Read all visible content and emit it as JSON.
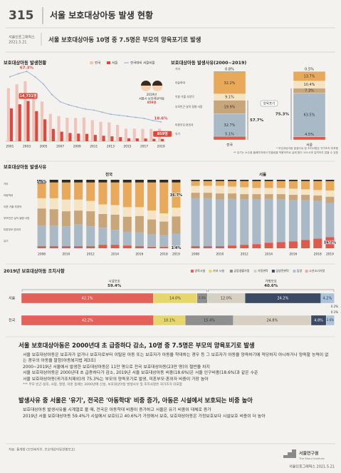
{
  "header": {
    "number": "315",
    "title": "서울 보호대상아동 발생 현황",
    "series_name": "서울인포그래픽스",
    "date": "2021.5.21",
    "subtitle": "서울 보호대상아동 10명 중 7.5명은 부모의 양육포기로 발생"
  },
  "chart_data": [
    {
      "type": "bar-line",
      "title": "보호대상아동 발생현황",
      "categories": [
        "2001",
        null,
        "2003",
        null,
        "2005",
        null,
        "2007",
        null,
        "2009",
        null,
        "2011",
        null,
        "2013",
        null,
        "2015",
        null,
        "2017",
        null,
        "2019"
      ],
      "series": [
        {
          "name": "전국",
          "color": "#f0c3bb",
          "values": [
            19400,
            20800,
            21890,
            17700,
            14500,
            10000,
            9200,
            8600,
            8500,
            8700,
            7700,
            7100,
            6900,
            6000,
            4600,
            4600,
            4500,
            4500,
            4618
          ]
        },
        {
          "name": "서울",
          "color": "#e0483e",
          "values": [
            12000,
            13500,
            14731,
            11000,
            8000,
            4500,
            3500,
            3000,
            2800,
            2700,
            2300,
            2000,
            1800,
            1500,
            1100,
            1050,
            1000,
            900,
            859
          ],
          "value_labels": [
            null,
            null,
            "14,731명",
            null,
            null,
            null,
            null,
            null,
            null,
            null,
            null,
            null,
            null,
            null,
            null,
            null,
            null,
            null,
            "859명"
          ]
        },
        {
          "name": "전국대비 서울비율",
          "color": "#9fb3d1",
          "axis": "y2",
          "values": [
            62,
            65,
            67.3,
            62,
            55,
            45,
            38,
            35,
            33,
            31,
            30,
            28,
            26,
            25,
            24,
            23,
            22,
            20,
            18.6
          ],
          "value_labels": [
            null,
            null,
            "67.3%",
            null,
            null,
            null,
            null,
            null,
            null,
            null,
            null,
            null,
            null,
            null,
            null,
            null,
            null,
            null,
            "18.6%"
          ]
        }
      ],
      "annotation": [
        "2019년",
        "서울시 보호대상아동",
        "859명"
      ]
    },
    {
      "type": "stacked-column",
      "title": "보호대상아동 발생사유(2000~2019)",
      "categories": [
        "전국",
        "서울"
      ],
      "series": [
        {
          "name": "기타",
          "color": "#2b2b2b",
          "values": [
            0.8,
            0.5
          ],
          "value_labels": [
            "0.8%",
            "0.5%"
          ]
        },
        {
          "name": "아동학대",
          "color": "#e8a95b",
          "values": [
            32.2,
            13.7
          ],
          "value_labels": [
            "32.2%",
            "13.7%"
          ]
        },
        {
          "name": "이혼·가출·부양악",
          "color": "#f4e4c4",
          "values": [
            9.1,
            10.4
          ],
          "value_labels": [
            "9.1%",
            "10.4%"
          ]
        },
        {
          "name": "부모빈곤·실직 질병·사망",
          "color": "#c9a67a",
          "values": [
            19.9,
            7.3
          ],
          "value_labels": [
            "19.9%",
            "7.3%"
          ]
        },
        {
          "name": "미혼부모·혼외자",
          "color": "#a9bac6",
          "values": [
            32.7,
            63.5
          ],
          "value_labels": [
            "32.7%",
            "63.5%"
          ]
        },
        {
          "name": "유기",
          "color": "#df5a4e",
          "values": [
            5.1,
            4.5
          ],
          "value_labels": [
            "5.1%",
            "4.5%"
          ]
        }
      ],
      "annotation": {
        "label": "양육포기",
        "values": [
          57.7,
          75.3
        ],
        "value_labels": [
          "57.7%",
          "75.3%"
        ]
      },
      "notes": [
        "* 보호대상아동 발생사유 및 조치사항은 귀가조치 미포함",
        "** 유기는 소수점 둘째자리에서 반올림을 적용하므로 실제 합이 100.0과 일치하지 않을 수 있음"
      ]
    },
    {
      "type": "stacked-panels",
      "title": "보호대상아동 발생사유",
      "categories": [
        "2008",
        null,
        "2010",
        null,
        "2012",
        null,
        "2014",
        null,
        "2016",
        null,
        "2018",
        "2019"
      ],
      "panels": [
        {
          "name": "전국",
          "series": [
            {
              "name": "기타",
              "color": "#2b2b2b",
              "values": [
                5.6,
                4,
                4,
                4,
                4,
                4,
                4,
                4,
                4,
                4,
                4,
                4
              ],
              "value_labels": [
                "5.6%",
                null,
                null,
                null,
                null,
                null,
                null,
                null,
                null,
                null,
                null,
                null
              ]
            },
            {
              "name": "아동학대",
              "color": "#e8a95b",
              "values": [
                21.4,
                23,
                25,
                25,
                27,
                32,
                33,
                36,
                36,
                41,
                45,
                36.7
              ],
              "value_labels": [
                null,
                null,
                null,
                null,
                null,
                null,
                null,
                null,
                null,
                null,
                null,
                "36.7%"
              ]
            },
            {
              "name": "이혼·가출·부양악",
              "color": "#f4e4c4",
              "values": [
                15,
                16,
                17,
                16,
                15,
                14,
                14,
                14,
                13,
                13,
                12,
                12.9
              ]
            },
            {
              "name": "부모빈곤·실직 질병·사망",
              "color": "#c9a67a",
              "values": [
                25,
                24,
                22,
                20,
                22,
                20,
                22,
                22,
                24,
                22,
                20,
                25
              ]
            },
            {
              "name": "미혼부모·혼외자",
              "color": "#a9bac6",
              "values": [
                30,
                30,
                29,
                32,
                29,
                25,
                22,
                20,
                20,
                18,
                17,
                20
              ]
            },
            {
              "name": "유기",
              "color": "#df5a4e",
              "values": [
                3,
                3,
                3,
                3,
                3,
                5,
                5,
                4,
                3,
                2,
                2,
                1.4
              ],
              "value_labels": [
                null,
                null,
                null,
                null,
                null,
                null,
                null,
                null,
                null,
                null,
                null,
                "1.4%"
              ]
            }
          ]
        },
        {
          "name": "서울",
          "series": [
            {
              "name": "기타",
              "color": "#2b2b2b",
              "values": [
                2,
                2,
                2,
                2,
                2,
                2,
                2,
                2,
                2,
                2,
                2,
                2
              ]
            },
            {
              "name": "아동학대",
              "color": "#e8a95b",
              "values": [
                7,
                7,
                7,
                8,
                9,
                10,
                10,
                10,
                11,
                12,
                13,
                13.8
              ]
            },
            {
              "name": "이혼·가출·부양악",
              "color": "#f4e4c4",
              "values": [
                10,
                10,
                11,
                10,
                10,
                9,
                9,
                9,
                9,
                8,
                8,
                9
              ]
            },
            {
              "name": "부모빈곤·실직 질병·사망",
              "color": "#c9a67a",
              "values": [
                8,
                8,
                9,
                8,
                8,
                8,
                7,
                8,
                8,
                8,
                8,
                9
              ]
            },
            {
              "name": "미혼부모·혼외자",
              "color": "#a9bac6",
              "values": [
                70,
                70,
                68,
                68,
                66,
                65,
                64,
                62,
                60,
                58,
                55,
                50
              ]
            },
            {
              "name": "유기",
              "color": "#df5a4e",
              "values": [
                3,
                3,
                3,
                4,
                5,
                6,
                8,
                9,
                10,
                12,
                14,
                16.2
              ],
              "value_labels": [
                null,
                null,
                null,
                null,
                null,
                null,
                null,
                null,
                null,
                null,
                null,
                "16.2%"
              ]
            }
          ]
        }
      ]
    },
    {
      "type": "stacked-bar",
      "title": "2019년 보호대상아동 조치사항",
      "categories": [
        "서울",
        "전국"
      ],
      "series": [
        {
          "name": "양육시설",
          "color": "#e2625a",
          "values": [
            42.1,
            42.2
          ],
          "value_labels": [
            "42.1%",
            "42.2%"
          ]
        },
        {
          "name": "기타 시설",
          "color": "#e6d66e",
          "values": [
            14.0,
            10.1
          ],
          "value_labels": [
            "14.0%",
            "10.1%"
          ]
        },
        {
          "name": "공동생활가정",
          "color": "#8f8f8f",
          "values": [
            3.3,
            15.4
          ],
          "value_labels": [
            "3.3%",
            "15.4%"
          ]
        },
        {
          "name": "가정위탁",
          "color": "#d5d0c2",
          "values": [
            12.0,
            24.8
          ],
          "value_labels": [
            "12.0%",
            "24.8%"
          ]
        },
        {
          "name": "입양전위탁",
          "color": "#3d4a63",
          "values": [
            24.2,
            4.8
          ],
          "value_labels": [
            "24.2%",
            "4.8%"
          ]
        },
        {
          "name": "입양",
          "color": "#a9c3dd",
          "values": [
            4.2,
            2.6
          ],
          "value_labels": [
            "4.2%",
            "2.6%"
          ]
        },
        {
          "name": "소년소녀가정",
          "color": "#f0a8a0",
          "values": [
            0.2,
            0.1
          ],
          "value_labels": [
            "0.2%",
            "0.1%"
          ]
        }
      ],
      "groups": {
        "names": [
          "시설보호",
          "가정보호"
        ],
        "values": [
          59.4,
          40.6
        ],
        "value_labels": [
          "59.4%",
          "40.6%"
        ]
      }
    }
  ],
  "sections": [
    {
      "heading": "서울 보호대상아동은 2000년대 초 급증하다 감소, 10명 중 7.5명은 부모의 양육포기로 발생",
      "paragraphs": [
        "서울 보호대상아동은 보호자가 없거나 보호자로부터 이탈된 아동 또는 보호자가 아동을 학대하는 경우 등 그 보호자가 아동을 양육하기에 적당하지 아니하거나 양육할 능력이 없는 경우의 아동을 말함(아동복지법 제3조)",
        "2000~2019년 서울에서 발생한 보호대상아동은 11만 명으로 전국 보호대상아동(23만 명)의 절반을 차지",
        "서울 보호대상아동은 2000년대 초 급증하다가 감소, 2019년 서울 보호대상아동 비중(18.6%)은 서울 인구비중(18.6%)과 같은 수준",
        "서울 보호대상아동(귀가조치제외)의 75.3%는 부모의 양육포기로 발생, 미혼부모·혼외자 비중이 가장 높아"
      ],
      "note": "*** 부모 빈곤·실직, 사망, 질병, 이혼 등에는 2000년에 신설, 보호대상아동 발생사유 및 조치사항은 귀가조치 미포함"
    },
    {
      "heading": "발생사유 중 서울은 '유기', 전국은 '아동학대' 비중 증가, 아동은 시설에서 보호되는 비중 높아",
      "paragraphs": [
        "보호대상아동 발생사유를 시계열로 볼 때, 전국은 아동학대 비중이 증가하고 서울은 유기 비중이 대체로 증가",
        "2019년 서울 보호대상아동 59.4%가 시설에서 보호되고 40.6%가 가정에서 보호, 보호대상아동은 가정보호보다 시설보호 비중이 더 높아"
      ]
    }
  ],
  "footer": {
    "source": "자료: 통계청 (보건복지부, 보호대상아동현황보고)",
    "org": "서울연구원",
    "org_en": "The Seoul Institute",
    "credit": "서울인포그래픽스 2021.5.21"
  }
}
